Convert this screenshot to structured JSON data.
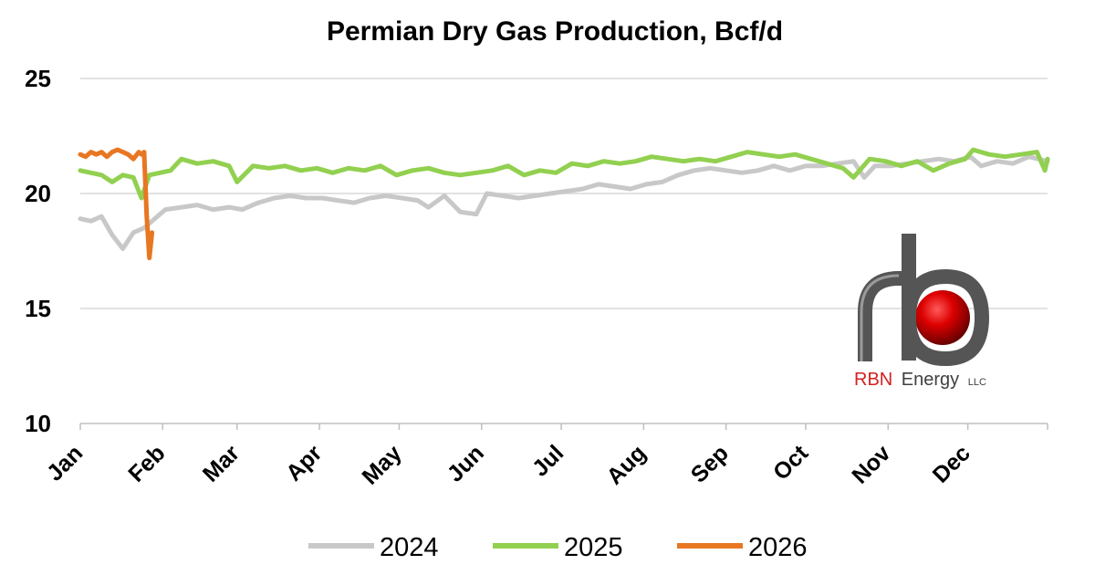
{
  "chart_data": {
    "type": "line",
    "title": "Permian Dry Gas Production, Bcf/d",
    "xlabel": "",
    "ylabel": "",
    "ylim": [
      10,
      25
    ],
    "yticks": [
      10,
      15,
      20,
      25
    ],
    "x_tick_labels": [
      "Jan",
      "Feb",
      "Mar",
      "Apr",
      "May",
      "Jun",
      "Jul",
      "Aug",
      "Sep",
      "Oct",
      "Nov",
      "Dec"
    ],
    "grid": true,
    "legend_position": "bottom",
    "series": [
      {
        "name": "2024",
        "color": "#c8c8c8",
        "points": [
          [
            "01-01",
            18.9
          ],
          [
            "01-05",
            18.8
          ],
          [
            "01-09",
            19.0
          ],
          [
            "01-13",
            18.2
          ],
          [
            "01-17",
            17.6
          ],
          [
            "01-21",
            18.3
          ],
          [
            "01-25",
            18.5
          ],
          [
            "01-29",
            18.9
          ],
          [
            "02-02",
            19.3
          ],
          [
            "02-08",
            19.4
          ],
          [
            "02-14",
            19.5
          ],
          [
            "02-20",
            19.3
          ],
          [
            "02-26",
            19.4
          ],
          [
            "03-03",
            19.3
          ],
          [
            "03-09",
            19.6
          ],
          [
            "03-15",
            19.8
          ],
          [
            "03-21",
            19.9
          ],
          [
            "03-27",
            19.8
          ],
          [
            "04-02",
            19.8
          ],
          [
            "04-08",
            19.7
          ],
          [
            "04-14",
            19.6
          ],
          [
            "04-20",
            19.8
          ],
          [
            "04-26",
            19.9
          ],
          [
            "05-02",
            19.8
          ],
          [
            "05-08",
            19.7
          ],
          [
            "05-12",
            19.4
          ],
          [
            "05-18",
            19.9
          ],
          [
            "05-24",
            19.2
          ],
          [
            "05-30",
            19.1
          ],
          [
            "06-03",
            20.0
          ],
          [
            "06-09",
            19.9
          ],
          [
            "06-15",
            19.8
          ],
          [
            "06-21",
            19.9
          ],
          [
            "06-27",
            20.0
          ],
          [
            "07-03",
            20.1
          ],
          [
            "07-09",
            20.2
          ],
          [
            "07-15",
            20.4
          ],
          [
            "07-21",
            20.3
          ],
          [
            "07-27",
            20.2
          ],
          [
            "08-02",
            20.4
          ],
          [
            "08-08",
            20.5
          ],
          [
            "08-14",
            20.8
          ],
          [
            "08-20",
            21.0
          ],
          [
            "08-26",
            21.1
          ],
          [
            "09-01",
            21.0
          ],
          [
            "09-07",
            20.9
          ],
          [
            "09-13",
            21.0
          ],
          [
            "09-19",
            21.2
          ],
          [
            "09-25",
            21.0
          ],
          [
            "10-01",
            21.2
          ],
          [
            "10-07",
            21.2
          ],
          [
            "10-13",
            21.3
          ],
          [
            "10-19",
            21.4
          ],
          [
            "10-23",
            20.7
          ],
          [
            "10-27",
            21.2
          ],
          [
            "11-02",
            21.2
          ],
          [
            "11-08",
            21.3
          ],
          [
            "11-14",
            21.4
          ],
          [
            "11-20",
            21.5
          ],
          [
            "11-26",
            21.4
          ],
          [
            "12-02",
            21.6
          ],
          [
            "12-06",
            21.2
          ],
          [
            "12-12",
            21.4
          ],
          [
            "12-18",
            21.3
          ],
          [
            "12-24",
            21.6
          ],
          [
            "12-31",
            21.4
          ]
        ]
      },
      {
        "name": "2025",
        "color": "#92d050",
        "points": [
          [
            "01-01",
            21.0
          ],
          [
            "01-05",
            20.9
          ],
          [
            "01-09",
            20.8
          ],
          [
            "01-13",
            20.5
          ],
          [
            "01-17",
            20.8
          ],
          [
            "01-21",
            20.7
          ],
          [
            "01-24",
            19.8
          ],
          [
            "01-27",
            20.8
          ],
          [
            "01-31",
            20.9
          ],
          [
            "02-04",
            21.0
          ],
          [
            "02-08",
            21.5
          ],
          [
            "02-14",
            21.3
          ],
          [
            "02-20",
            21.4
          ],
          [
            "02-26",
            21.2
          ],
          [
            "03-01",
            20.5
          ],
          [
            "03-07",
            21.2
          ],
          [
            "03-13",
            21.1
          ],
          [
            "03-19",
            21.2
          ],
          [
            "03-25",
            21.0
          ],
          [
            "03-31",
            21.1
          ],
          [
            "04-06",
            20.9
          ],
          [
            "04-12",
            21.1
          ],
          [
            "04-18",
            21.0
          ],
          [
            "04-24",
            21.2
          ],
          [
            "04-30",
            20.8
          ],
          [
            "05-06",
            21.0
          ],
          [
            "05-12",
            21.1
          ],
          [
            "05-18",
            20.9
          ],
          [
            "05-24",
            20.8
          ],
          [
            "05-30",
            20.9
          ],
          [
            "06-05",
            21.0
          ],
          [
            "06-11",
            21.2
          ],
          [
            "06-17",
            20.8
          ],
          [
            "06-23",
            21.0
          ],
          [
            "06-29",
            20.9
          ],
          [
            "07-05",
            21.3
          ],
          [
            "07-11",
            21.2
          ],
          [
            "07-17",
            21.4
          ],
          [
            "07-23",
            21.3
          ],
          [
            "07-29",
            21.4
          ],
          [
            "08-04",
            21.6
          ],
          [
            "08-10",
            21.5
          ],
          [
            "08-16",
            21.4
          ],
          [
            "08-22",
            21.5
          ],
          [
            "08-28",
            21.4
          ],
          [
            "09-03",
            21.6
          ],
          [
            "09-09",
            21.8
          ],
          [
            "09-15",
            21.7
          ],
          [
            "09-21",
            21.6
          ],
          [
            "09-27",
            21.7
          ],
          [
            "10-03",
            21.5
          ],
          [
            "10-09",
            21.3
          ],
          [
            "10-15",
            21.1
          ],
          [
            "10-19",
            20.7
          ],
          [
            "10-25",
            21.5
          ],
          [
            "10-31",
            21.4
          ],
          [
            "11-06",
            21.2
          ],
          [
            "11-12",
            21.4
          ],
          [
            "11-18",
            21.0
          ],
          [
            "11-24",
            21.3
          ],
          [
            "11-30",
            21.5
          ],
          [
            "12-03",
            21.9
          ],
          [
            "12-09",
            21.7
          ],
          [
            "12-15",
            21.6
          ],
          [
            "12-21",
            21.7
          ],
          [
            "12-27",
            21.8
          ],
          [
            "12-30",
            21.0
          ],
          [
            "12-31",
            21.5
          ]
        ]
      },
      {
        "name": "2026",
        "color": "#e87722",
        "points": [
          [
            "01-01",
            21.7
          ],
          [
            "01-03",
            21.6
          ],
          [
            "01-05",
            21.8
          ],
          [
            "01-07",
            21.7
          ],
          [
            "01-09",
            21.8
          ],
          [
            "01-11",
            21.6
          ],
          [
            "01-13",
            21.8
          ],
          [
            "01-15",
            21.9
          ],
          [
            "01-17",
            21.8
          ],
          [
            "01-19",
            21.7
          ],
          [
            "01-21",
            21.5
          ],
          [
            "01-23",
            21.8
          ],
          [
            "01-24",
            21.7
          ],
          [
            "01-25",
            21.8
          ],
          [
            "01-26",
            19.0
          ],
          [
            "01-27",
            17.2
          ],
          [
            "01-28",
            18.3
          ]
        ]
      }
    ]
  },
  "logo": {
    "brand_red": "RBN",
    "brand_dark": "Energy",
    "suffix": "LLC",
    "color_red": "#d42020",
    "color_dark": "#404040",
    "ball_color": "#cc0000",
    "pipe_color": "#5a5a5a"
  }
}
